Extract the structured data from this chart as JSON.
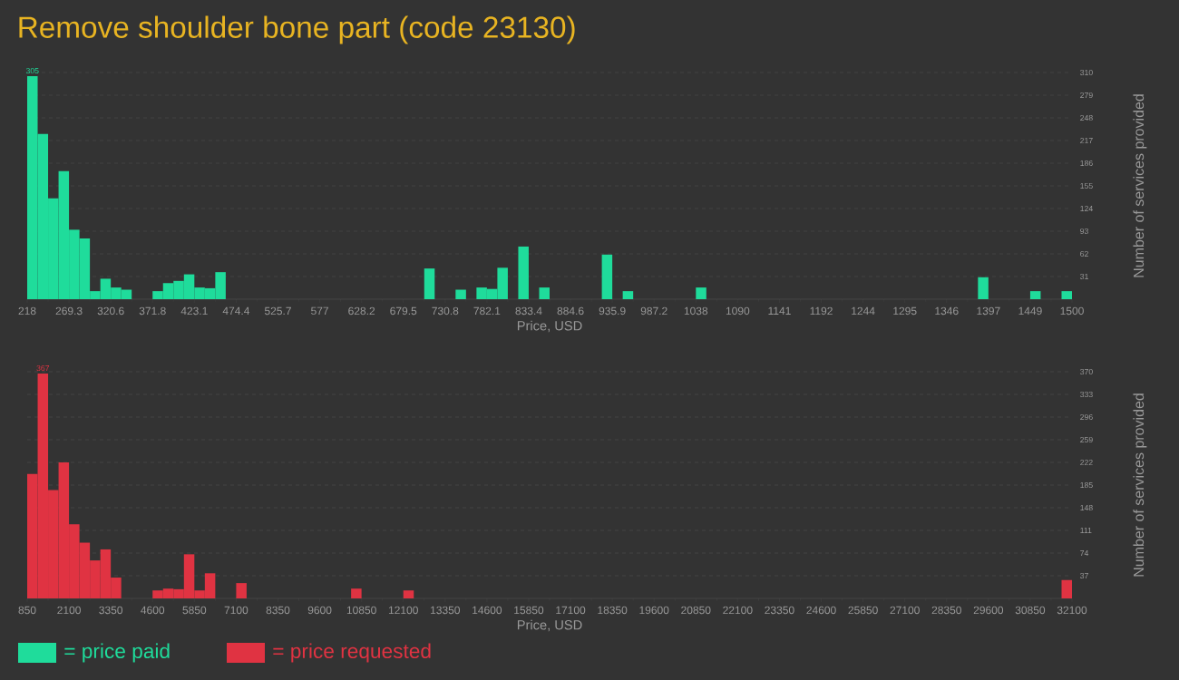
{
  "chart_data": [
    {
      "type": "histogram",
      "title": "Remove shoulder bone part (code 23130)",
      "xlabel": "Price, USD",
      "ylabel": "Number of services provided",
      "bins": [
        218,
        230.82,
        243.64,
        256.46,
        269.28,
        282.1,
        294.92,
        307.74,
        320.56,
        333.38,
        346.2,
        359.02,
        371.84,
        384.66,
        397.48,
        410.3,
        423.12,
        435.94,
        448.76,
        461.58,
        474.4,
        487.22,
        500.04,
        512.86,
        525.68,
        538.5,
        551.32,
        564.14,
        576.96,
        589.78,
        602.6,
        615.42,
        628.24,
        641.06,
        653.88,
        666.7,
        679.52,
        692.34,
        705.16,
        717.98,
        730.8,
        743.62,
        756.44,
        769.26,
        782.08,
        794.9,
        807.72,
        820.54,
        833.36,
        846.18,
        859,
        871.82,
        884.64,
        897.46,
        910.28,
        923.1,
        935.92,
        948.74,
        961.56,
        974.38,
        987.2,
        1000.02,
        1012.84,
        1025.66,
        1038.48,
        1051.3,
        1064.12,
        1076.94,
        1089.76,
        1102.58,
        1115.4,
        1128.22,
        1141.04,
        1153.86,
        1166.68,
        1179.5,
        1192.32,
        1205.14,
        1217.96,
        1230.78,
        1243.6,
        1256.42,
        1269.24,
        1282.06,
        1294.88,
        1307.7,
        1320.52,
        1333.34,
        1346.16,
        1358.98,
        1371.8,
        1384.62,
        1397.44,
        1410.26,
        1423.08,
        1435.9,
        1448.72,
        1461.54,
        1474.36,
        1487.18,
        1500
      ],
      "series": [
        {
          "name": "= price paid",
          "color": "#1fdc9b",
          "values": [
            305,
            226,
            138,
            175,
            95,
            83,
            11,
            28,
            16,
            13,
            0,
            0,
            11,
            22,
            25,
            34,
            16,
            15,
            37,
            0,
            0,
            0,
            0,
            0,
            0,
            0,
            0,
            0,
            0,
            0,
            0,
            0,
            0,
            0,
            0,
            0,
            0,
            0,
            42,
            0,
            0,
            13,
            0,
            16,
            14,
            43,
            0,
            72,
            0,
            16,
            0,
            0,
            0,
            0,
            0,
            61,
            0,
            11,
            0,
            0,
            0,
            0,
            0,
            0,
            16,
            0,
            0,
            0,
            0,
            0,
            0,
            0,
            0,
            0,
            0,
            0,
            0,
            0,
            0,
            0,
            0,
            0,
            0,
            0,
            0,
            0,
            0,
            0,
            0,
            0,
            0,
            30,
            0,
            0,
            0,
            0,
            11,
            0,
            0,
            11
          ]
        }
      ],
      "xlim": [
        218,
        1500
      ],
      "xticks": [
        {
          "value": 218,
          "label": "218"
        },
        {
          "value": 269.28,
          "label": "269.3"
        },
        {
          "value": 320.56,
          "label": "320.6"
        },
        {
          "value": 371.84,
          "label": "371.8"
        },
        {
          "value": 423.12,
          "label": "423.1"
        },
        {
          "value": 474.4,
          "label": "474.4"
        },
        {
          "value": 525.68,
          "label": "525.7"
        },
        {
          "value": 576.96,
          "label": "577"
        },
        {
          "value": 628.24,
          "label": "628.2"
        },
        {
          "value": 679.52,
          "label": "679.5"
        },
        {
          "value": 730.8,
          "label": "730.8"
        },
        {
          "value": 782.08,
          "label": "782.1"
        },
        {
          "value": 833.36,
          "label": "833.4"
        },
        {
          "value": 884.64,
          "label": "884.6"
        },
        {
          "value": 935.92,
          "label": "935.9"
        },
        {
          "value": 987.2,
          "label": "987.2"
        },
        {
          "value": 1038.48,
          "label": "1038"
        },
        {
          "value": 1089.76,
          "label": "1090"
        },
        {
          "value": 1141.04,
          "label": "1141"
        },
        {
          "value": 1192.32,
          "label": "1192"
        },
        {
          "value": 1243.6,
          "label": "1244"
        },
        {
          "value": 1294.88,
          "label": "1295"
        },
        {
          "value": 1346.16,
          "label": "1346"
        },
        {
          "value": 1397.44,
          "label": "1397"
        },
        {
          "value": 1448.72,
          "label": "1449"
        },
        {
          "value": 1500,
          "label": "1500"
        }
      ],
      "ylim": [
        0,
        310
      ],
      "yticks": [
        31,
        62,
        93,
        124,
        155,
        186,
        217,
        248,
        279,
        310
      ],
      "annotations": [
        {
          "text": "305",
          "x": 224.41,
          "y": 305
        }
      ],
      "grid": "y",
      "legend": "bottom left"
    },
    {
      "type": "histogram",
      "xlabel": "Price, USD",
      "ylabel": "Number of services provided",
      "bins": [
        850,
        1162.5,
        1475,
        1787.5,
        2100,
        2412.5,
        2725,
        3037.5,
        3350,
        3662.5,
        3975,
        4287.5,
        4600,
        4912.5,
        5225,
        5537.5,
        5850,
        6162.5,
        6475,
        6787.5,
        7100,
        7412.5,
        7725,
        8037.5,
        8350,
        8662.5,
        8975,
        9287.5,
        9600,
        9912.5,
        10225,
        10537.5,
        10850,
        11162.5,
        11475,
        11787.5,
        12100,
        12412.5,
        12725,
        13037.5,
        13350,
        13662.5,
        13975,
        14287.5,
        14600,
        14912.5,
        15225,
        15537.5,
        15850,
        16162.5,
        16475,
        16787.5,
        17100,
        17412.5,
        17725,
        18037.5,
        18350,
        18662.5,
        18975,
        19287.5,
        19600,
        19912.5,
        20225,
        20537.5,
        20850,
        21162.5,
        21475,
        21787.5,
        22100,
        22412.5,
        22725,
        23037.5,
        23350,
        23662.5,
        23975,
        24287.5,
        24600,
        24912.5,
        25225,
        25537.5,
        25850,
        26162.5,
        26475,
        26787.5,
        27100,
        27412.5,
        27725,
        28037.5,
        28350,
        28662.5,
        28975,
        29287.5,
        29600,
        29912.5,
        30225,
        30537.5,
        30850,
        31162.5,
        31475,
        31787.5,
        32100
      ],
      "series": [
        {
          "name": "= price requested",
          "color": "#e03342",
          "values": [
            203,
            367,
            177,
            222,
            121,
            91,
            62,
            80,
            34,
            0,
            0,
            0,
            13,
            16,
            15,
            72,
            13,
            41,
            0,
            0,
            25,
            0,
            0,
            0,
            0,
            0,
            0,
            0,
            0,
            0,
            0,
            16,
            0,
            0,
            0,
            0,
            13,
            0,
            0,
            0,
            0,
            0,
            0,
            0,
            0,
            0,
            0,
            0,
            0,
            0,
            0,
            0,
            0,
            0,
            0,
            0,
            0,
            0,
            0,
            0,
            0,
            0,
            0,
            0,
            0,
            0,
            0,
            0,
            0,
            0,
            0,
            0,
            0,
            0,
            0,
            0,
            0,
            0,
            0,
            0,
            0,
            0,
            0,
            0,
            0,
            0,
            0,
            0,
            0,
            0,
            0,
            0,
            0,
            0,
            0,
            0,
            0,
            0,
            0,
            30
          ]
        }
      ],
      "xlim": [
        850,
        32100
      ],
      "xticks": [
        850,
        2100,
        3350,
        4600,
        5850,
        7100,
        8350,
        9600,
        10850,
        12100,
        13350,
        14600,
        15850,
        17100,
        18350,
        19600,
        20850,
        22100,
        23350,
        24600,
        25850,
        27100,
        28350,
        29600,
        30850,
        32100
      ],
      "ylim": [
        0,
        370
      ],
      "yticks": [
        37,
        74,
        111,
        148,
        185,
        222,
        259,
        296,
        333,
        370
      ],
      "annotations": [
        {
          "text": "367",
          "x": 1318.75,
          "y": 367
        }
      ],
      "grid": "y",
      "legend": "bottom left"
    }
  ]
}
